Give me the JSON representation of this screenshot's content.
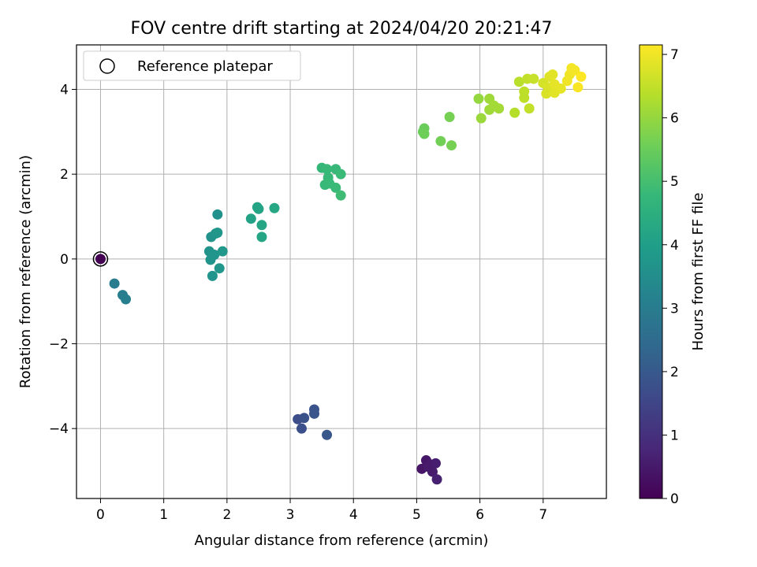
{
  "chart_data": {
    "type": "scatter",
    "title": "FOV centre drift starting at 2024/04/20 20:21:47",
    "xlabel": "Angular distance from reference (arcmin)",
    "ylabel": "Rotation from reference (arcmin)",
    "xlim": [
      -0.38,
      8.0
    ],
    "ylim": [
      -5.65,
      5.05
    ],
    "xticks": [
      0,
      1,
      2,
      3,
      4,
      5,
      6,
      7
    ],
    "yticks": [
      -4,
      -2,
      0,
      2,
      4
    ],
    "xtick_labels": [
      "0",
      "1",
      "2",
      "3",
      "4",
      "5",
      "6",
      "7"
    ],
    "ytick_labels": [
      "−4",
      "−2",
      "0",
      "2",
      "4"
    ],
    "grid": true,
    "legend": {
      "placement": "top-left",
      "entries": [
        "Reference platepar"
      ]
    },
    "colorbar": {
      "label": "Hours from first FF file",
      "range": [
        0,
        7.15
      ],
      "ticks": [
        0,
        1,
        2,
        3,
        4,
        5,
        6,
        7
      ],
      "tick_labels": [
        "0",
        "1",
        "2",
        "3",
        "4",
        "5",
        "6",
        "7"
      ],
      "colormap": "viridis",
      "stops": [
        "#440154",
        "#482878",
        "#3e4989",
        "#31688e",
        "#26828e",
        "#1f9e89",
        "#35b779",
        "#6ece58",
        "#b5de2b",
        "#fde725"
      ]
    },
    "reference": {
      "x": 0,
      "y": 0,
      "hours": 0
    },
    "points": [
      [
        5.08,
        -4.95,
        0.4
      ],
      [
        5.15,
        -4.75,
        0.45
      ],
      [
        5.22,
        -4.85,
        0.5
      ],
      [
        5.25,
        -5.02,
        0.55
      ],
      [
        5.3,
        -4.82,
        0.6
      ],
      [
        5.32,
        -5.2,
        0.65
      ],
      [
        5.18,
        -4.9,
        0.5
      ],
      [
        3.12,
        -3.78,
        1.7
      ],
      [
        3.18,
        -4.0,
        1.75
      ],
      [
        3.22,
        -3.75,
        1.8
      ],
      [
        3.38,
        -3.55,
        1.85
      ],
      [
        3.38,
        -3.65,
        1.9
      ],
      [
        3.58,
        -4.15,
        1.95
      ],
      [
        0.22,
        -0.58,
        2.95
      ],
      [
        0.35,
        -0.85,
        3.05
      ],
      [
        0.4,
        -0.95,
        3.1
      ],
      [
        1.85,
        1.05,
        3.6
      ],
      [
        1.75,
        0.52,
        3.65
      ],
      [
        1.82,
        0.6,
        3.7
      ],
      [
        1.85,
        0.62,
        3.75
      ],
      [
        1.72,
        0.18,
        3.65
      ],
      [
        1.8,
        0.1,
        3.7
      ],
      [
        1.93,
        0.18,
        3.8
      ],
      [
        1.74,
        -0.02,
        3.7
      ],
      [
        1.88,
        -0.22,
        3.75
      ],
      [
        1.77,
        -0.4,
        3.7
      ],
      [
        2.38,
        0.95,
        4.1
      ],
      [
        2.5,
        1.18,
        4.15
      ],
      [
        2.48,
        1.22,
        4.15
      ],
      [
        2.55,
        0.8,
        4.2
      ],
      [
        2.75,
        1.2,
        4.25
      ],
      [
        2.55,
        0.52,
        4.2
      ],
      [
        3.5,
        2.15,
        4.75
      ],
      [
        3.58,
        2.12,
        4.8
      ],
      [
        3.72,
        2.12,
        4.8
      ],
      [
        3.8,
        2.0,
        4.85
      ],
      [
        3.6,
        1.92,
        4.8
      ],
      [
        3.55,
        1.75,
        4.8
      ],
      [
        3.62,
        1.78,
        4.82
      ],
      [
        3.72,
        1.68,
        4.85
      ],
      [
        3.8,
        1.5,
        4.9
      ],
      [
        5.1,
        3.0,
        5.5
      ],
      [
        5.12,
        3.08,
        5.5
      ],
      [
        5.12,
        2.95,
        5.55
      ],
      [
        5.38,
        2.78,
        5.6
      ],
      [
        5.52,
        3.35,
        5.65
      ],
      [
        5.55,
        2.68,
        5.65
      ],
      [
        5.98,
        3.78,
        6.0
      ],
      [
        6.02,
        3.32,
        6.05
      ],
      [
        6.15,
        3.78,
        6.1
      ],
      [
        6.15,
        3.52,
        6.1
      ],
      [
        6.22,
        3.62,
        6.15
      ],
      [
        6.3,
        3.55,
        6.15
      ],
      [
        6.55,
        3.45,
        6.35
      ],
      [
        6.62,
        4.18,
        6.4
      ],
      [
        6.7,
        3.95,
        6.45
      ],
      [
        6.7,
        3.8,
        6.45
      ],
      [
        6.75,
        4.25,
        6.5
      ],
      [
        6.78,
        3.55,
        6.5
      ],
      [
        6.85,
        4.25,
        6.55
      ],
      [
        7.0,
        4.15,
        6.7
      ],
      [
        7.05,
        3.9,
        6.75
      ],
      [
        7.08,
        4.05,
        6.75
      ],
      [
        7.1,
        4.3,
        6.8
      ],
      [
        7.15,
        4.35,
        6.85
      ],
      [
        7.18,
        3.92,
        6.85
      ],
      [
        7.18,
        4.12,
        6.9
      ],
      [
        7.28,
        4.02,
        6.9
      ],
      [
        7.38,
        4.2,
        7.0
      ],
      [
        7.42,
        4.35,
        7.0
      ],
      [
        7.45,
        4.5,
        7.05
      ],
      [
        7.5,
        4.45,
        7.05
      ],
      [
        7.55,
        4.05,
        7.1
      ],
      [
        7.6,
        4.3,
        7.15
      ]
    ]
  }
}
